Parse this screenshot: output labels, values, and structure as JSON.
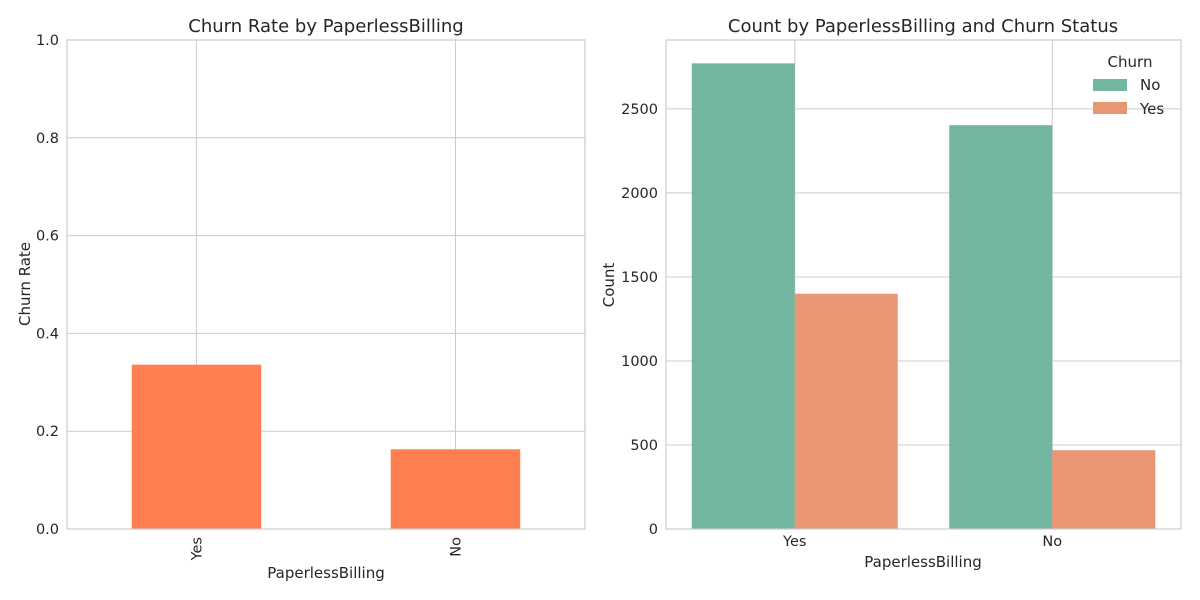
{
  "chart_data": [
    {
      "type": "bar",
      "title": "Churn Rate by PaperlessBilling",
      "xlabel": "PaperlessBilling",
      "ylabel": "Churn Rate",
      "categories": [
        "Yes",
        "No"
      ],
      "values": [
        0.336,
        0.163
      ],
      "ylim": [
        0,
        1.0
      ],
      "yticks": [
        "0.0",
        "0.2",
        "0.4",
        "0.6",
        "0.8",
        "1.0"
      ],
      "color": "#ff7f50",
      "grid": true,
      "xtick_rotation": "vertical"
    },
    {
      "type": "bar",
      "title": "Count by PaperlessBilling and Churn Status",
      "xlabel": "PaperlessBilling",
      "ylabel": "Count",
      "categories": [
        "Yes",
        "No"
      ],
      "series": [
        {
          "name": "No",
          "values": [
            2771,
            2403
          ],
          "color": "#72b6a1"
        },
        {
          "name": "Yes",
          "values": [
            1400,
            469
          ],
          "color": "#e99675"
        }
      ],
      "ylim": [
        0,
        2910
      ],
      "yticks": [
        "0",
        "500",
        "1000",
        "1500",
        "2000",
        "2500"
      ],
      "legend": {
        "title": "Churn",
        "placement": "top-right"
      },
      "grid": true
    }
  ]
}
